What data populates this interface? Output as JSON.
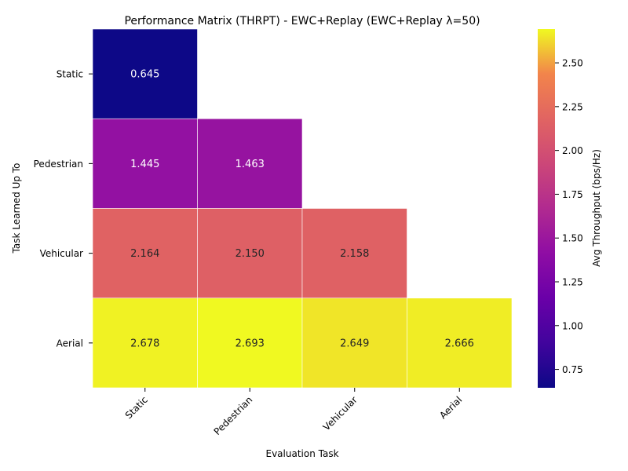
{
  "chart_data": {
    "type": "heatmap",
    "title": "Performance Matrix (THRPT) - EWC+Replay (EWC+Replay λ=50)",
    "xlabel": "Evaluation Task",
    "ylabel": "Task Learned Up To",
    "x_categories": [
      "Static",
      "Pedestrian",
      "Vehicular",
      "Aerial"
    ],
    "y_categories": [
      "Static",
      "Pedestrian",
      "Vehicular",
      "Aerial"
    ],
    "values": [
      [
        0.645,
        null,
        null,
        null
      ],
      [
        1.445,
        1.463,
        null,
        null
      ],
      [
        2.164,
        2.15,
        2.158,
        null
      ],
      [
        2.678,
        2.693,
        2.649,
        2.666
      ]
    ],
    "value_labels": [
      [
        "0.645",
        "",
        "",
        ""
      ],
      [
        "1.445",
        "1.463",
        "",
        ""
      ],
      [
        "2.164",
        "2.150",
        "2.158",
        ""
      ],
      [
        "2.678",
        "2.693",
        "2.649",
        "2.666"
      ]
    ],
    "colormap": "plasma",
    "colorbar": {
      "label": "Avg Throughput (bps/Hz)",
      "vmin": 0.645,
      "vmax": 2.693,
      "ticks": [
        0.75,
        1.0,
        1.25,
        1.5,
        1.75,
        2.0,
        2.25,
        2.5
      ],
      "tick_labels": [
        "0.75",
        "1.00",
        "1.25",
        "1.50",
        "1.75",
        "2.00",
        "2.25",
        "2.50"
      ]
    }
  }
}
